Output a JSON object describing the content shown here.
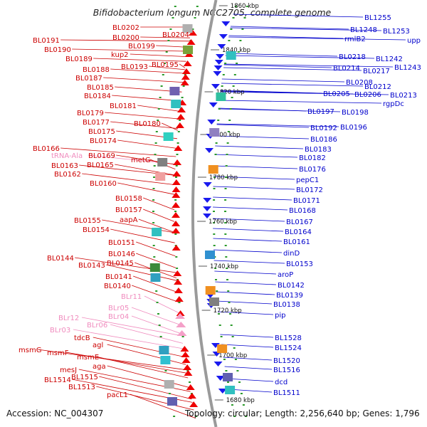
{
  "title": "Bifidobacterium longum NCC2705, complete genome",
  "footer": {
    "accession": "Accession: NC_004307",
    "topology": "Topology: circular; Length: 2,256,640 bp; Genes: 1,796"
  },
  "colors": {
    "minus_label": "#cc0000",
    "plus_label": "#0000cc",
    "rna_label": "#f08cbe",
    "minus_arrow": "#ee0000",
    "plus_arrow": "#1a1aee",
    "rna_arrow": "#f4a0c8",
    "backbone": "#9a9a9a",
    "tick": "#2a9a2a"
  },
  "kbp_marks": [
    "1860 kbp",
    "1840 kbp",
    "1820 kbp",
    "1800 kbp",
    "1780 kbp",
    "1760 kbp",
    "1740 kbp",
    "1720 kbp",
    "1700 kbp",
    "1680 kbp"
  ],
  "left_labels": [
    {
      "text": "BL0202",
      "kind": "minus"
    },
    {
      "text": "BL0204",
      "kind": "minus"
    },
    {
      "text": "BL0200",
      "kind": "minus"
    },
    {
      "text": "BL0191",
      "kind": "minus"
    },
    {
      "text": "BL0199",
      "kind": "minus"
    },
    {
      "text": "BL0190",
      "kind": "minus"
    },
    {
      "text": "kup2",
      "kind": "minus"
    },
    {
      "text": "BL0189",
      "kind": "minus"
    },
    {
      "text": "BL0193",
      "kind": "minus"
    },
    {
      "text": "BL0195",
      "kind": "minus"
    },
    {
      "text": "BL0188",
      "kind": "minus"
    },
    {
      "text": "BL0187",
      "kind": "minus"
    },
    {
      "text": "BL0185",
      "kind": "minus"
    },
    {
      "text": "BL0184",
      "kind": "minus"
    },
    {
      "text": "BL0181",
      "kind": "minus"
    },
    {
      "text": "BL0179",
      "kind": "minus"
    },
    {
      "text": "BL0177",
      "kind": "minus"
    },
    {
      "text": "BL0180",
      "kind": "minus"
    },
    {
      "text": "BL0175",
      "kind": "minus"
    },
    {
      "text": "BL0174",
      "kind": "minus"
    },
    {
      "text": "BL0166",
      "kind": "minus"
    },
    {
      "text": "tRNA-Ala",
      "kind": "rna"
    },
    {
      "text": "BL0169",
      "kind": "minus"
    },
    {
      "text": "metG",
      "kind": "minus"
    },
    {
      "text": "BL0163",
      "kind": "minus"
    },
    {
      "text": "BL0165",
      "kind": "minus"
    },
    {
      "text": "BL0162",
      "kind": "minus"
    },
    {
      "text": "BL0160",
      "kind": "minus"
    },
    {
      "text": "BL0158",
      "kind": "minus"
    },
    {
      "text": "BL0157",
      "kind": "minus"
    },
    {
      "text": "BL0155",
      "kind": "minus"
    },
    {
      "text": "aapA",
      "kind": "minus"
    },
    {
      "text": "BL0154",
      "kind": "minus"
    },
    {
      "text": "BL0151",
      "kind": "minus"
    },
    {
      "text": "BL0146",
      "kind": "minus"
    },
    {
      "text": "BL0144",
      "kind": "minus"
    },
    {
      "text": "BL0145",
      "kind": "minus"
    },
    {
      "text": "BL0143",
      "kind": "minus"
    },
    {
      "text": "BL0141",
      "kind": "minus"
    },
    {
      "text": "BL0140",
      "kind": "minus"
    },
    {
      "text": "BLr11",
      "kind": "rna"
    },
    {
      "text": "BLr05",
      "kind": "rna"
    },
    {
      "text": "BLr04",
      "kind": "rna"
    },
    {
      "text": "BLr12",
      "kind": "rna"
    },
    {
      "text": "BLr06",
      "kind": "rna"
    },
    {
      "text": "BLr03",
      "kind": "rna"
    },
    {
      "text": "tdcB",
      "kind": "minus"
    },
    {
      "text": "agl",
      "kind": "minus"
    },
    {
      "text": "msmG",
      "kind": "minus"
    },
    {
      "text": "msmF",
      "kind": "minus"
    },
    {
      "text": "msmE",
      "kind": "minus"
    },
    {
      "text": "aga",
      "kind": "minus"
    },
    {
      "text": "mesJ",
      "kind": "minus"
    },
    {
      "text": "BL1515",
      "kind": "minus"
    },
    {
      "text": "BL1514",
      "kind": "minus"
    },
    {
      "text": "BL1513",
      "kind": "minus"
    },
    {
      "text": "pacL1",
      "kind": "minus"
    }
  ],
  "right_labels": [
    "BL1255",
    "BL1248",
    "BL1253",
    "rmlB2",
    "upp",
    "BL0218",
    "BL1242",
    "BL0214",
    "BL0217",
    "BL1243",
    "BL0208",
    "BL0212",
    "BL0205",
    "BL0206",
    "BL0213",
    "rgpDc",
    "BL0197",
    "BL0198",
    "BL0192",
    "BL0196",
    "BL0186",
    "BL0183",
    "BL0182",
    "BL0176",
    "pepC1",
    "BL0172",
    "BL0171",
    "BL0168",
    "BL0167",
    "BL0164",
    "BL0161",
    "dinD",
    "BL0153",
    "aroP",
    "BL0142",
    "BL0139",
    "BL0138",
    "pip",
    "BL1528",
    "BL1524",
    "BL1520",
    "BL1516",
    "dcd",
    "BL1511"
  ]
}
